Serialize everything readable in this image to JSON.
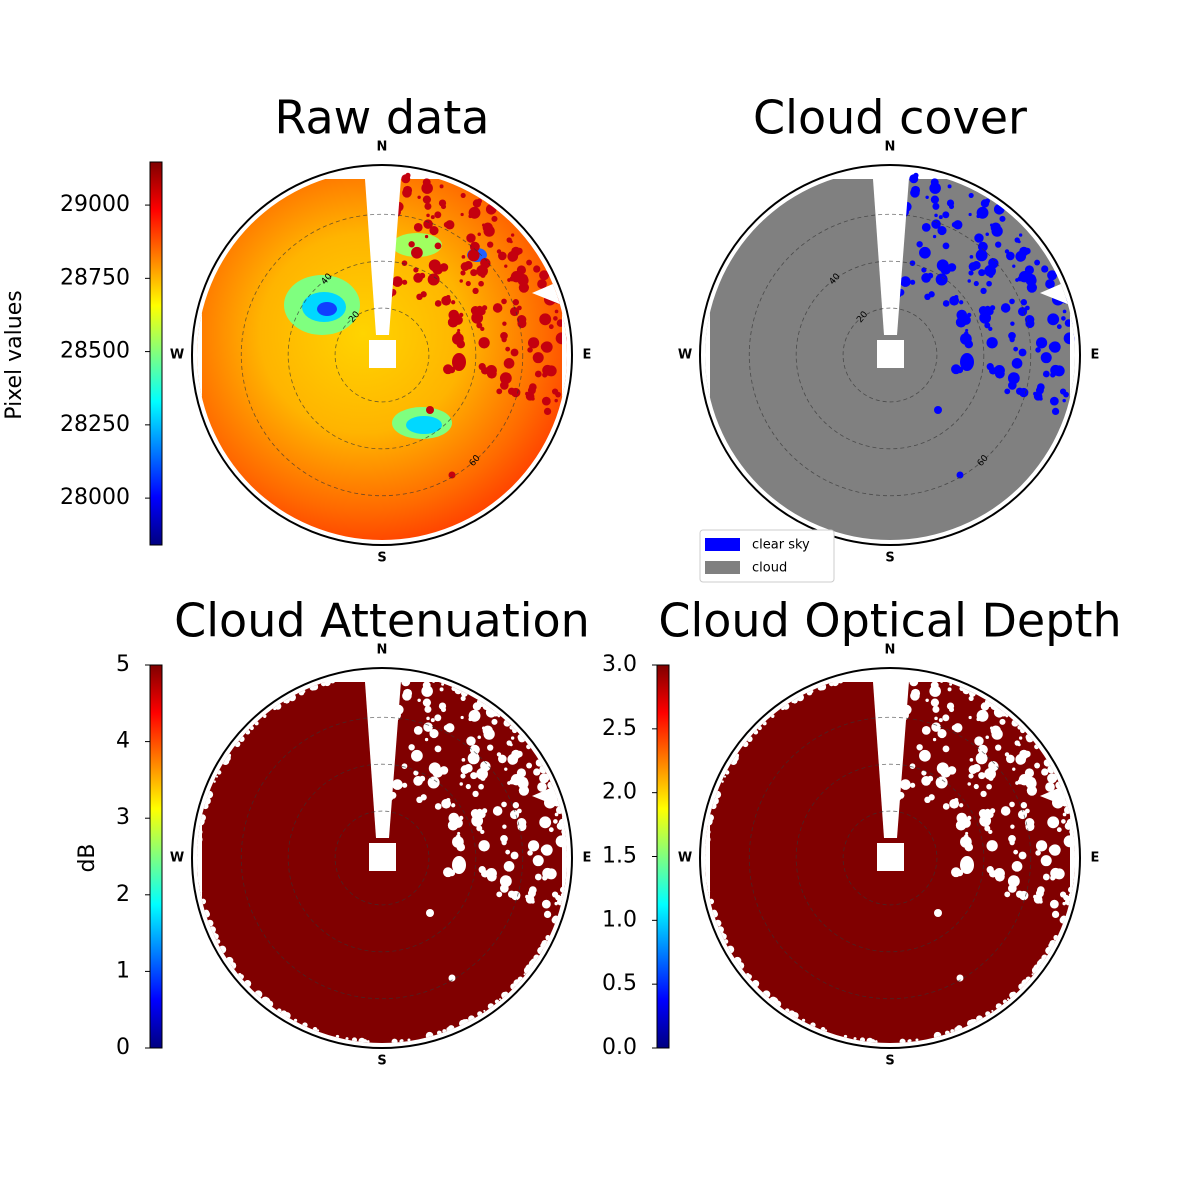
{
  "chart_data": [
    {
      "type": "image",
      "title": "Raw data",
      "directions": [
        "N",
        "E",
        "S",
        "W"
      ],
      "rings": [
        20,
        40,
        60
      ],
      "ring_labels": true,
      "rlim": [
        0,
        81
      ],
      "colorbar": {
        "label": "Pixel values",
        "colormap": "jet",
        "lim": [
          27840,
          29147
        ],
        "ticks": [
          28000,
          28250,
          28500,
          28750,
          29000
        ]
      }
    },
    {
      "type": "image",
      "title": "Cloud cover",
      "directions": [
        "N",
        "E",
        "S",
        "W"
      ],
      "rings": [
        20,
        40,
        60
      ],
      "ring_labels": true,
      "rlim": [
        0,
        81
      ],
      "legend": [
        {
          "name": "clear sky",
          "color": "#0000ff"
        },
        {
          "name": "cloud",
          "color": "#808080"
        }
      ]
    },
    {
      "type": "image",
      "title": "Cloud Attenuation",
      "directions": [
        "N",
        "E",
        "S",
        "W"
      ],
      "rings": [
        20,
        40,
        60
      ],
      "ring_labels": false,
      "rlim": [
        0,
        81
      ],
      "colorbar": {
        "label": "dB",
        "colormap": "jet",
        "lim": [
          0,
          5
        ],
        "ticks": [
          0,
          1,
          2,
          3,
          4,
          5
        ]
      }
    },
    {
      "type": "image",
      "title": "Cloud Optical Depth",
      "directions": [
        "N",
        "E",
        "S",
        "W"
      ],
      "rings": [
        20,
        40,
        60
      ],
      "ring_labels": false,
      "rlim": [
        0,
        81
      ],
      "colorbar": {
        "colormap": "jet",
        "lim": [
          0,
          3
        ],
        "ticks": [
          {
            "value": 0,
            "label": "0.0"
          },
          0.5,
          {
            "value": 1,
            "label": "1.0"
          },
          1.5,
          {
            "value": 2,
            "label": "2.0"
          },
          2.5,
          {
            "value": 3,
            "label": "3.0"
          }
        ]
      }
    }
  ]
}
